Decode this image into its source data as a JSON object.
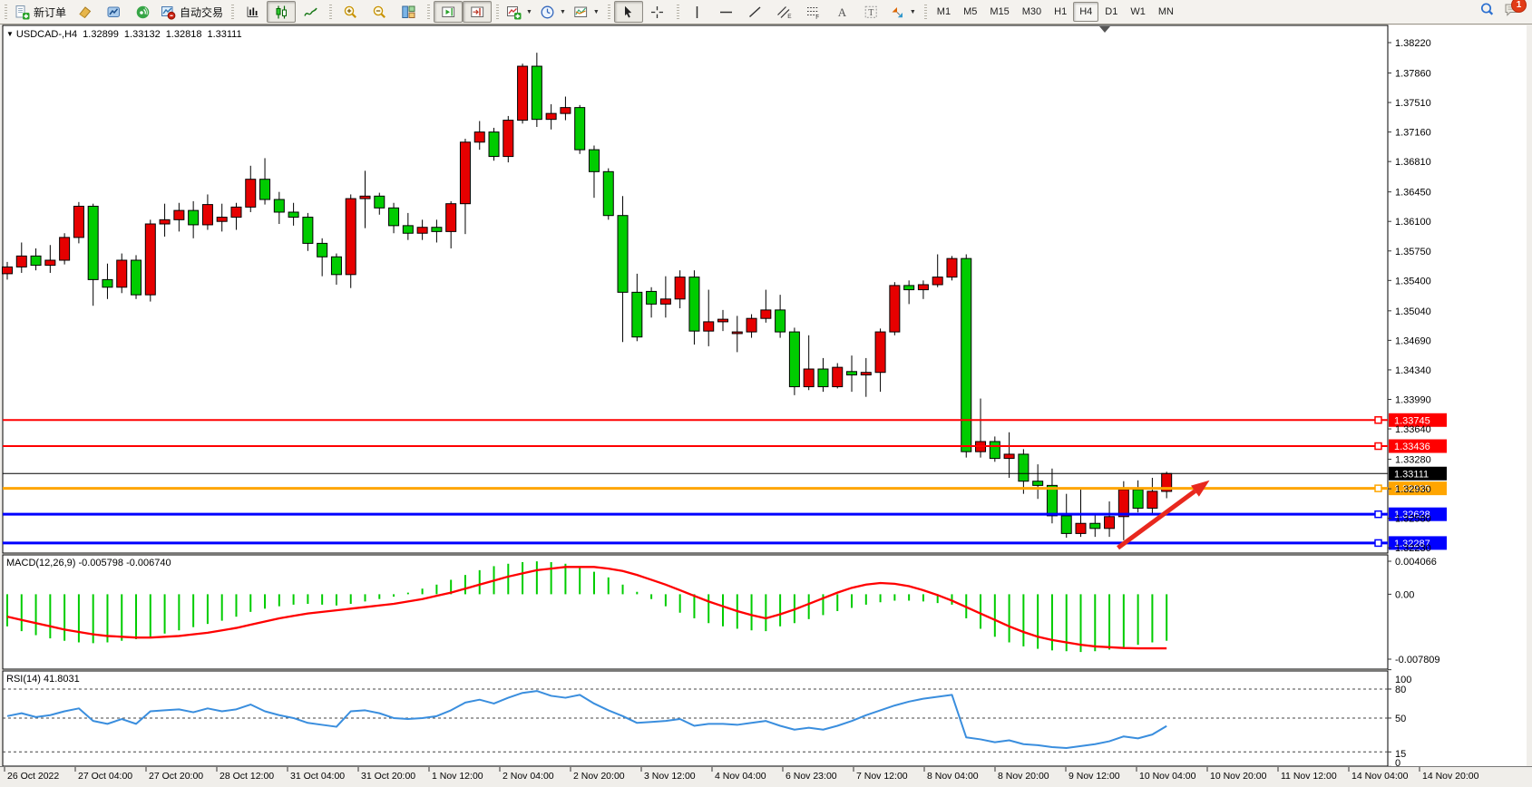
{
  "toolbar": {
    "groups": [
      {
        "items": [
          {
            "name": "new-order",
            "icon": "new-order-icon",
            "label": "新订单"
          },
          {
            "name": "chart-tool",
            "icon": "chart-tool-icon"
          },
          {
            "name": "profile",
            "icon": "profile-icon"
          },
          {
            "name": "signal",
            "icon": "signal-icon"
          },
          {
            "name": "autotrade",
            "icon": "autotrade-icon",
            "label": "自动交易"
          }
        ]
      },
      {
        "items": [
          {
            "name": "bar-chart",
            "icon": "bar-chart-icon"
          },
          {
            "name": "candlestick",
            "icon": "candlestick-icon",
            "active": true
          },
          {
            "name": "line-chart",
            "icon": "line-chart-icon"
          }
        ]
      },
      {
        "items": [
          {
            "name": "zoom-in",
            "icon": "zoom-in-icon"
          },
          {
            "name": "zoom-out",
            "icon": "zoom-out-icon"
          },
          {
            "name": "tile-windows",
            "icon": "tile-windows-icon"
          }
        ]
      },
      {
        "items": [
          {
            "name": "auto-scroll",
            "icon": "autoscroll-icon",
            "active": true
          },
          {
            "name": "chart-shift",
            "icon": "chart-shift-icon",
            "active": true
          }
        ]
      },
      {
        "items": [
          {
            "name": "add-indicator",
            "icon": "add-indicator-icon",
            "caret": true
          },
          {
            "name": "periods",
            "icon": "periods-icon",
            "caret": true
          },
          {
            "name": "template",
            "icon": "template-icon",
            "caret": true
          }
        ]
      },
      {
        "items": [
          {
            "name": "cursor",
            "icon": "cursor-icon",
            "active": true
          },
          {
            "name": "crosshair",
            "icon": "crosshair-icon"
          }
        ]
      },
      {
        "items": [
          {
            "name": "vertical-line",
            "icon": "vline-icon"
          },
          {
            "name": "horizontal-line",
            "icon": "hline-icon"
          },
          {
            "name": "trendline",
            "icon": "trendline-icon"
          },
          {
            "name": "equidistant-channel",
            "icon": "channel-icon"
          },
          {
            "name": "fibonacci",
            "icon": "fibo-icon"
          },
          {
            "name": "text",
            "icon": "text-icon"
          },
          {
            "name": "text-label",
            "icon": "label-icon"
          },
          {
            "name": "arrows",
            "icon": "arrows-icon",
            "caret": true
          }
        ]
      },
      {
        "items": [
          {
            "name": "timeframe-m1",
            "label": "M1"
          },
          {
            "name": "timeframe-m5",
            "label": "M5"
          },
          {
            "name": "timeframe-m15",
            "label": "M15"
          },
          {
            "name": "timeframe-m30",
            "label": "M30"
          },
          {
            "name": "timeframe-h1",
            "label": "H1"
          },
          {
            "name": "timeframe-h4",
            "label": "H4",
            "active": true
          },
          {
            "name": "timeframe-d1",
            "label": "D1"
          },
          {
            "name": "timeframe-w1",
            "label": "W1"
          },
          {
            "name": "timeframe-mn",
            "label": "MN"
          }
        ]
      }
    ],
    "right_items": [
      {
        "name": "search",
        "icon": "search-icon"
      },
      {
        "name": "chat",
        "icon": "chat-icon",
        "badge": "1"
      }
    ]
  },
  "chart": {
    "title": {
      "symbol": "USDCAD-,H4",
      "open": "1.32899",
      "high": "1.33132",
      "low": "1.32818",
      "close": "1.33111"
    },
    "macd_label": "MACD(12,26,9) -0.005798 -0.006740",
    "rsi_label": "RSI(14) 41.8031"
  },
  "chart_data": {
    "type": "candlestick",
    "symbol": "USDCAD-,H4",
    "timeframe": "H4",
    "title": "USDCAD-,H4 1.32899 1.33132 1.32818 1.33111",
    "x_labels": [
      "26 Oct 2022",
      "27 Oct 04:00",
      "27 Oct 20:00",
      "28 Oct 12:00",
      "31 Oct 04:00",
      "31 Oct 20:00",
      "1 Nov 12:00",
      "2 Nov 04:00",
      "2 Nov 20:00",
      "3 Nov 12:00",
      "4 Nov 04:00",
      "6 Nov 23:00",
      "7 Nov 12:00",
      "8 Nov 04:00",
      "8 Nov 20:00",
      "9 Nov 12:00",
      "10 Nov 04:00",
      "10 Nov 20:00",
      "11 Nov 12:00",
      "14 Nov 04:00",
      "14 Nov 20:00"
    ],
    "price_ticks": [
      "1.38220",
      "1.37860",
      "1.37510",
      "1.37160",
      "1.36810",
      "1.36450",
      "1.36100",
      "1.35750",
      "1.35400",
      "1.35040",
      "1.34690",
      "1.34340",
      "1.33990",
      "1.33640",
      "1.33280",
      "1.32930",
      "1.32580",
      "1.32230"
    ],
    "ylim": [
      1.3223,
      1.384
    ],
    "grid": false,
    "candles": [
      [
        1.3548,
        1.3562,
        1.3541,
        1.3556
      ],
      [
        1.3556,
        1.3585,
        1.3549,
        1.3569
      ],
      [
        1.3569,
        1.3578,
        1.3552,
        1.3558
      ],
      [
        1.3558,
        1.3582,
        1.3549,
        1.3564
      ],
      [
        1.3564,
        1.3596,
        1.3559,
        1.3591
      ],
      [
        1.3591,
        1.3633,
        1.3584,
        1.3628
      ],
      [
        1.3628,
        1.3631,
        1.351,
        1.3541
      ],
      [
        1.3541,
        1.356,
        1.3518,
        1.3532
      ],
      [
        1.3532,
        1.3572,
        1.3525,
        1.3564
      ],
      [
        1.3564,
        1.357,
        1.3518,
        1.3523
      ],
      [
        1.3523,
        1.3612,
        1.3515,
        1.3607
      ],
      [
        1.3607,
        1.3631,
        1.3592,
        1.3612
      ],
      [
        1.3612,
        1.3632,
        1.3598,
        1.3623
      ],
      [
        1.3623,
        1.3634,
        1.359,
        1.3606
      ],
      [
        1.3606,
        1.3642,
        1.36,
        1.363
      ],
      [
        1.361,
        1.3631,
        1.3598,
        1.3615
      ],
      [
        1.3615,
        1.3632,
        1.36,
        1.3627
      ],
      [
        1.3627,
        1.3676,
        1.3621,
        1.366
      ],
      [
        1.366,
        1.3685,
        1.363,
        1.3636
      ],
      [
        1.3636,
        1.3645,
        1.3607,
        1.3621
      ],
      [
        1.3621,
        1.3632,
        1.3605,
        1.3615
      ],
      [
        1.3615,
        1.362,
        1.3575,
        1.3584
      ],
      [
        1.3584,
        1.359,
        1.3545,
        1.3568
      ],
      [
        1.3568,
        1.3572,
        1.3535,
        1.3547
      ],
      [
        1.3547,
        1.3642,
        1.3531,
        1.3637
      ],
      [
        1.3637,
        1.367,
        1.3602,
        1.364
      ],
      [
        1.364,
        1.3644,
        1.3618,
        1.3626
      ],
      [
        1.3626,
        1.3632,
        1.3596,
        1.3605
      ],
      [
        1.3605,
        1.362,
        1.3588,
        1.3596
      ],
      [
        1.3596,
        1.3612,
        1.3588,
        1.3603
      ],
      [
        1.3603,
        1.3612,
        1.3585,
        1.3598
      ],
      [
        1.3598,
        1.3634,
        1.3578,
        1.3631
      ],
      [
        1.3631,
        1.3708,
        1.3595,
        1.3704
      ],
      [
        1.3704,
        1.3729,
        1.3695,
        1.3716
      ],
      [
        1.3716,
        1.3721,
        1.3682,
        1.3687
      ],
      [
        1.3687,
        1.3735,
        1.368,
        1.373
      ],
      [
        1.373,
        1.3797,
        1.3726,
        1.3794
      ],
      [
        1.3794,
        1.381,
        1.3722,
        1.3731
      ],
      [
        1.3731,
        1.3749,
        1.3719,
        1.3738
      ],
      [
        1.3738,
        1.3758,
        1.373,
        1.3745
      ],
      [
        1.3745,
        1.3748,
        1.369,
        1.3695
      ],
      [
        1.3695,
        1.37,
        1.3638,
        1.3669
      ],
      [
        1.3669,
        1.3673,
        1.3612,
        1.3617
      ],
      [
        1.3617,
        1.364,
        1.3467,
        1.3526
      ],
      [
        1.3526,
        1.3548,
        1.3468,
        1.3473
      ],
      [
        1.3527,
        1.3532,
        1.3496,
        1.3512
      ],
      [
        1.3512,
        1.3545,
        1.3496,
        1.3518
      ],
      [
        1.3518,
        1.3552,
        1.3507,
        1.3544
      ],
      [
        1.3544,
        1.3552,
        1.3464,
        1.348
      ],
      [
        1.348,
        1.3529,
        1.3462,
        1.3491
      ],
      [
        1.3491,
        1.3505,
        1.348,
        1.3494
      ],
      [
        1.3477,
        1.3498,
        1.3455,
        1.3479
      ],
      [
        1.3479,
        1.35,
        1.3472,
        1.3495
      ],
      [
        1.3495,
        1.3529,
        1.349,
        1.3505
      ],
      [
        1.3505,
        1.3523,
        1.3472,
        1.3479
      ],
      [
        1.3479,
        1.3484,
        1.3404,
        1.3414
      ],
      [
        1.3414,
        1.3475,
        1.341,
        1.3435
      ],
      [
        1.3435,
        1.3448,
        1.3408,
        1.3414
      ],
      [
        1.3414,
        1.3442,
        1.3412,
        1.3437
      ],
      [
        1.3432,
        1.3451,
        1.3408,
        1.3428
      ],
      [
        1.3428,
        1.3448,
        1.3402,
        1.3431
      ],
      [
        1.3431,
        1.3483,
        1.3408,
        1.3479
      ],
      [
        1.3479,
        1.3538,
        1.3475,
        1.3534
      ],
      [
        1.3534,
        1.354,
        1.3512,
        1.3529
      ],
      [
        1.3529,
        1.354,
        1.3518,
        1.3535
      ],
      [
        1.3535,
        1.3571,
        1.3532,
        1.3544
      ],
      [
        1.3544,
        1.3569,
        1.354,
        1.3566
      ],
      [
        1.3566,
        1.3571,
        1.333,
        1.3337
      ],
      [
        1.3337,
        1.34,
        1.333,
        1.3349
      ],
      [
        1.3349,
        1.3355,
        1.3325,
        1.3329
      ],
      [
        1.3329,
        1.336,
        1.3306,
        1.3334
      ],
      [
        1.3334,
        1.334,
        1.3287,
        1.3302
      ],
      [
        1.3302,
        1.3322,
        1.3281,
        1.3297
      ],
      [
        1.3297,
        1.3317,
        1.3252,
        1.3261
      ],
      [
        1.3261,
        1.3287,
        1.3235,
        1.324
      ],
      [
        1.324,
        1.3294,
        1.3236,
        1.3252
      ],
      [
        1.3252,
        1.3262,
        1.3236,
        1.3246
      ],
      [
        1.3246,
        1.3278,
        1.3236,
        1.326
      ],
      [
        1.326,
        1.3302,
        1.3232,
        1.3292
      ],
      [
        1.3292,
        1.3303,
        1.3265,
        1.327
      ],
      [
        1.327,
        1.3306,
        1.3262,
        1.329
      ],
      [
        1.32899,
        1.33132,
        1.32818,
        1.33111
      ]
    ],
    "hlines": [
      {
        "price": 1.33745,
        "label": "1.33745",
        "color": "#ff0000",
        "width": 2,
        "handle": true
      },
      {
        "price": 1.33436,
        "label": "1.33436",
        "color": "#ff0000",
        "width": 2,
        "handle": true
      },
      {
        "price": 1.33111,
        "label": "1.33111",
        "color": "#000000",
        "width": 1,
        "handle": false,
        "current": true
      },
      {
        "price": 1.32935,
        "label": "1.32935",
        "color": "#ffa500",
        "width": 3,
        "handle": true
      },
      {
        "price": 1.32628,
        "label": "1.32628",
        "color": "#0000ff",
        "width": 3,
        "handle": true
      },
      {
        "price": 1.32287,
        "label": "1.32287",
        "color": "#0000ff",
        "width": 3,
        "handle": true
      }
    ],
    "arrow": {
      "from_bar": 77.6,
      "from_price": 1.3223,
      "to_bar": 84.0,
      "to_price": 1.3303,
      "color": "#e8281e"
    },
    "macd": {
      "label": "MACD(12,26,9)",
      "value": "-0.005798",
      "signal_value": "-0.006740",
      "axis_labels": [
        "0.004066",
        "0.00",
        "-0.007809"
      ],
      "histogram": [
        -0.004,
        -0.0046,
        -0.0051,
        -0.0055,
        -0.0058,
        -0.006,
        -0.0061,
        -0.006,
        -0.0058,
        -0.0056,
        -0.0053,
        -0.0049,
        -0.0045,
        -0.0041,
        -0.0037,
        -0.0033,
        -0.0028,
        -0.0022,
        -0.0018,
        -0.0015,
        -0.0013,
        -0.0012,
        -0.0013,
        -0.0014,
        -0.0012,
        -0.0009,
        -0.0006,
        -0.0003,
        0.0002,
        0.0007,
        0.0012,
        0.0018,
        0.0024,
        0.003,
        0.0035,
        0.0038,
        0.004,
        0.0041,
        0.004,
        0.0038,
        0.0034,
        0.0028,
        0.0021,
        0.0012,
        0.0003,
        -0.0006,
        -0.0015,
        -0.0023,
        -0.003,
        -0.0036,
        -0.004,
        -0.0043,
        -0.0045,
        -0.0046,
        -0.004,
        -0.0036,
        -0.0031,
        -0.0026,
        -0.0021,
        -0.0017,
        -0.0013,
        -0.001,
        -0.0008,
        -0.0008,
        -0.0009,
        -0.0011,
        -0.0013,
        -0.003,
        -0.0043,
        -0.0053,
        -0.006,
        -0.0065,
        -0.0068,
        -0.007,
        -0.0071,
        -0.0072,
        -0.0071,
        -0.0069,
        -0.0066,
        -0.0063,
        -0.006,
        -0.005798
      ],
      "signal": [
        -0.0028,
        -0.0032,
        -0.0036,
        -0.004,
        -0.0044,
        -0.0047,
        -0.005,
        -0.0052,
        -0.0053,
        -0.0054,
        -0.0054,
        -0.0053,
        -0.0052,
        -0.005,
        -0.0048,
        -0.0045,
        -0.0042,
        -0.0038,
        -0.0034,
        -0.003,
        -0.0027,
        -0.0024,
        -0.0022,
        -0.002,
        -0.0018,
        -0.0016,
        -0.0014,
        -0.0012,
        -0.0009,
        -0.0006,
        -0.0002,
        0.0002,
        0.0007,
        0.0012,
        0.0017,
        0.0022,
        0.0026,
        0.003,
        0.0032,
        0.0034,
        0.0034,
        0.0034,
        0.0032,
        0.0029,
        0.0024,
        0.0018,
        0.0012,
        0.0005,
        -0.0002,
        -0.0009,
        -0.0015,
        -0.0021,
        -0.0026,
        -0.003,
        -0.0025,
        -0.0019,
        -0.0012,
        -0.0005,
        0.0002,
        0.0008,
        0.0012,
        0.0014,
        0.0013,
        0.001,
        0.0005,
        -0.0001,
        -0.0008,
        -0.0016,
        -0.0024,
        -0.0032,
        -0.004,
        -0.0047,
        -0.0053,
        -0.0057,
        -0.006,
        -0.0063,
        -0.0065,
        -0.0066,
        -0.0067,
        -0.00674,
        -0.00674,
        -0.00674
      ]
    },
    "rsi": {
      "label": "RSI(14)",
      "value": "41.8031",
      "levels": [
        80,
        50,
        15
      ],
      "axis_labels": [
        "100",
        "80",
        "50",
        "15",
        "0"
      ],
      "values": [
        52,
        55,
        51,
        53,
        57,
        60,
        47,
        44,
        49,
        44,
        57,
        58,
        59,
        56,
        60,
        57,
        59,
        64,
        57,
        53,
        50,
        45,
        43,
        41,
        57,
        58,
        55,
        50,
        49,
        50,
        52,
        58,
        66,
        69,
        65,
        71,
        76,
        78,
        73,
        71,
        74,
        65,
        58,
        52,
        45,
        46,
        47,
        49,
        42,
        44,
        44,
        43,
        45,
        47,
        42,
        38,
        40,
        38,
        42,
        47,
        53,
        58,
        63,
        67,
        70,
        72,
        74,
        30,
        28,
        25,
        27,
        23,
        22,
        20,
        19,
        21,
        23,
        26,
        31,
        29,
        33,
        41.8031
      ]
    },
    "colors": {
      "bull": "#e60000",
      "bear": "#00cc00",
      "wick": "#000000",
      "macd_hist": "#00cc00",
      "macd_signal": "#ff0000",
      "rsi_line": "#3a8ede",
      "arrow": "#e8281e",
      "axis_text": "#000000",
      "pane_bg": "#ffffff"
    }
  }
}
